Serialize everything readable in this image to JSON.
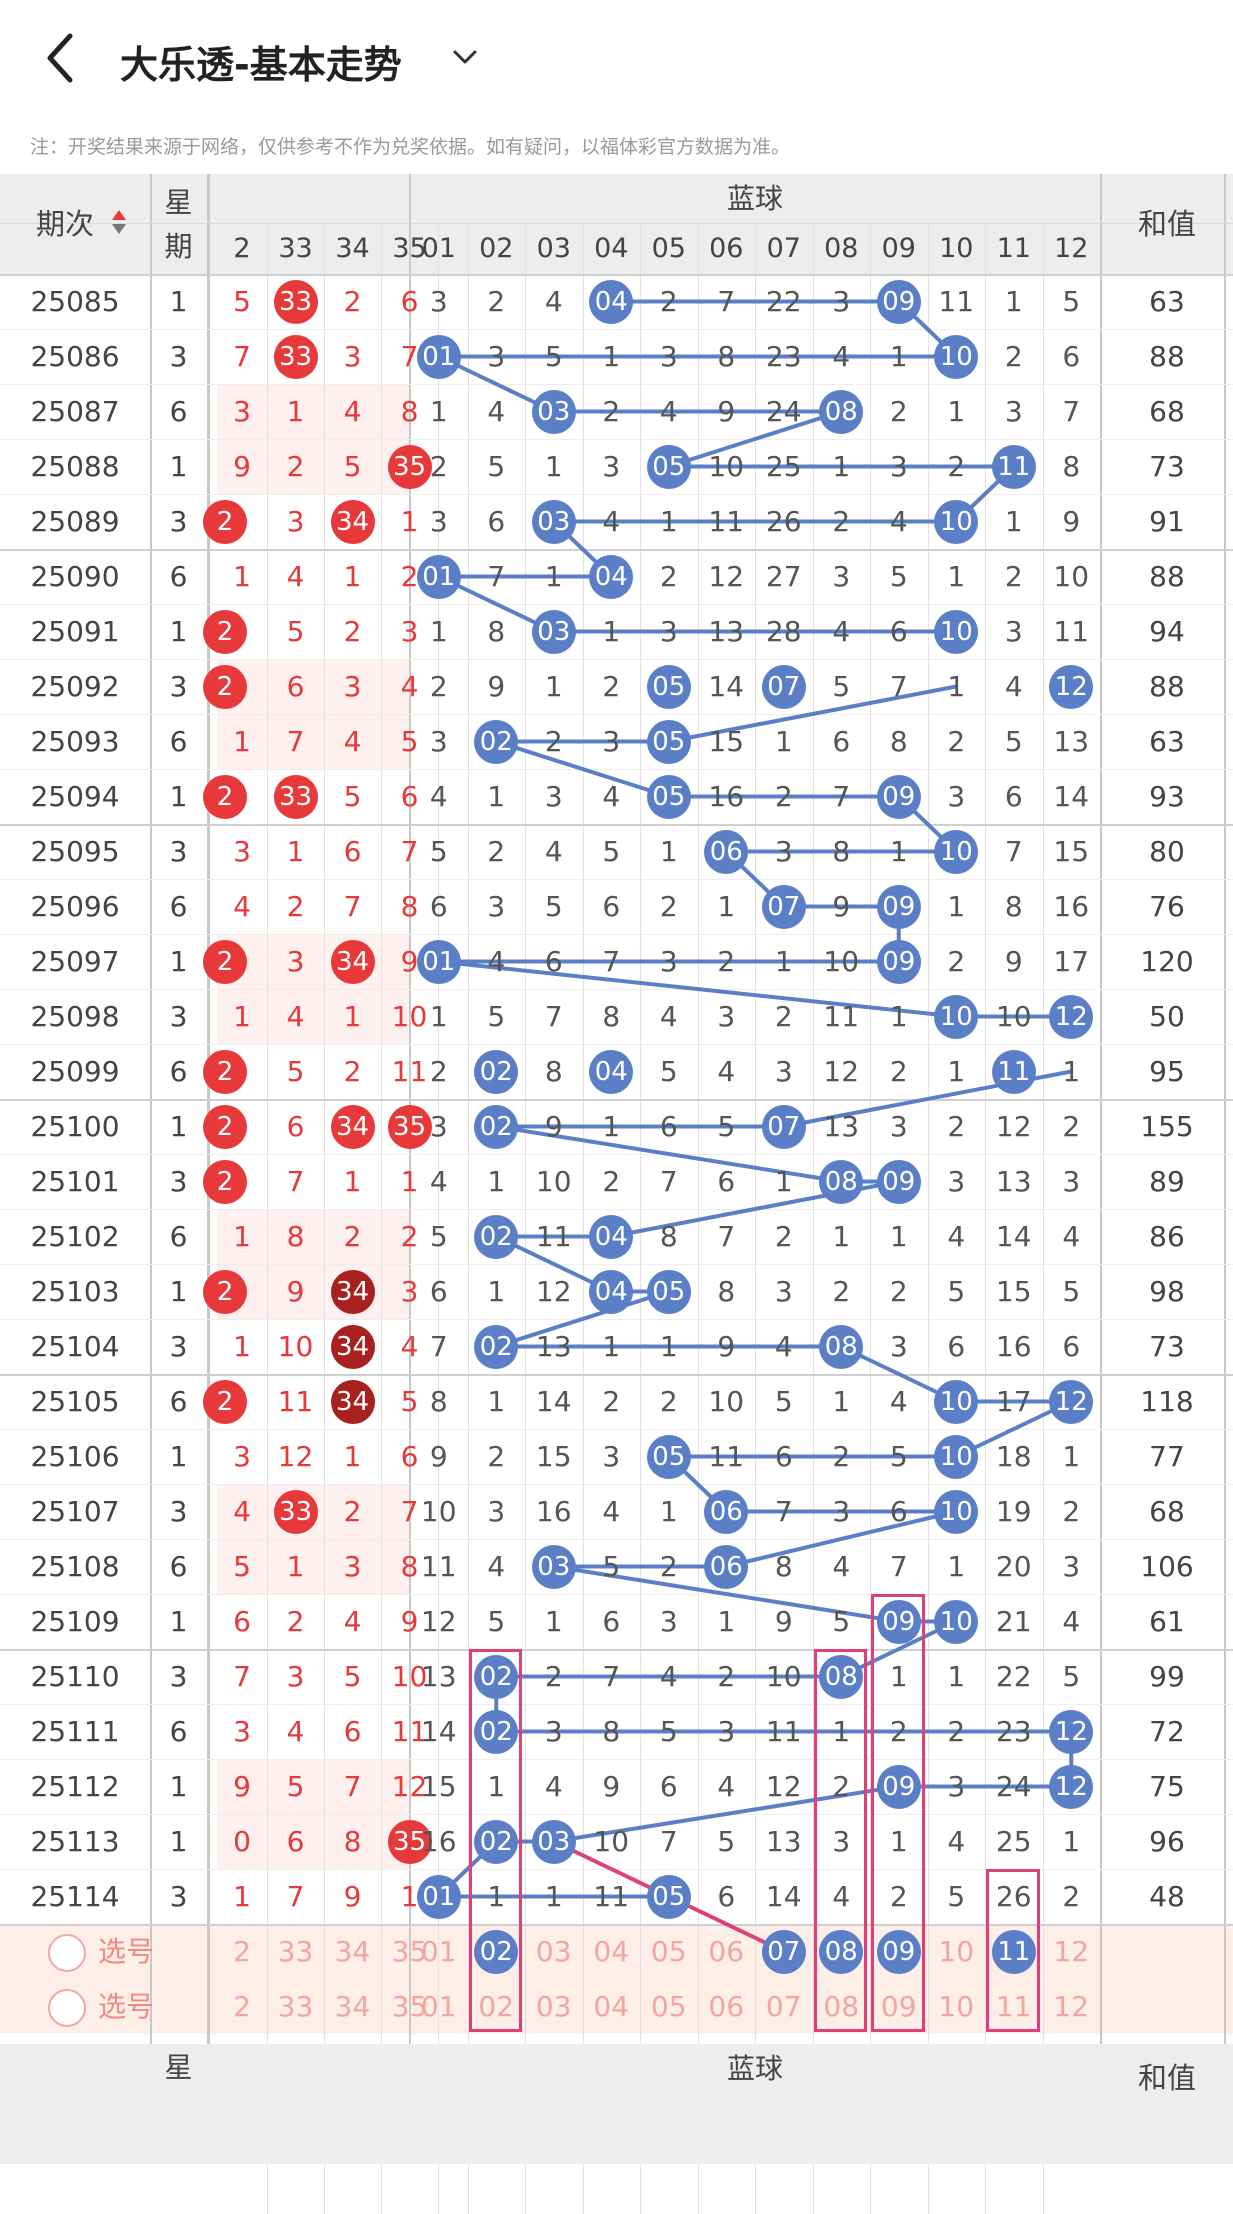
{
  "header": {
    "title": "大乐透-基本走势",
    "back_icon": "chevron-left-icon",
    "dropdown_icon": "chevron-down-icon"
  },
  "note": "注：开奖结果来源于网络，仅供参考不作为兑奖依据。如有疑问，以福体彩官方数据为准。",
  "columns": {
    "period": "期次",
    "weekday": "星期",
    "blue_group": "蓝球",
    "sum": "和值",
    "front_visible": [
      "2",
      "33",
      "34",
      "35"
    ],
    "blue": [
      "01",
      "02",
      "03",
      "04",
      "05",
      "06",
      "07",
      "08",
      "09",
      "10",
      "11",
      "12"
    ]
  },
  "rows": [
    {
      "period": "25085",
      "week": "1",
      "front": [
        "5",
        "33",
        "2",
        "6"
      ],
      "blue": [
        "3",
        "2",
        "4",
        "04",
        "2",
        "7",
        "22",
        "3",
        "09",
        "11",
        "1",
        "5"
      ],
      "sum": "63"
    },
    {
      "period": "25086",
      "week": "3",
      "front": [
        "7",
        "33",
        "3",
        "7"
      ],
      "blue": [
        "01",
        "3",
        "5",
        "1",
        "3",
        "8",
        "23",
        "4",
        "1",
        "10",
        "2",
        "6"
      ],
      "sum": "88"
    },
    {
      "period": "25087",
      "week": "6",
      "front": [
        "3",
        "1",
        "4",
        "8"
      ],
      "blue": [
        "1",
        "4",
        "03",
        "2",
        "4",
        "9",
        "24",
        "08",
        "2",
        "1",
        "3",
        "7"
      ],
      "sum": "68"
    },
    {
      "period": "25088",
      "week": "1",
      "front": [
        "9",
        "2",
        "5",
        "35"
      ],
      "blue": [
        "2",
        "5",
        "1",
        "3",
        "05",
        "10",
        "25",
        "1",
        "3",
        "2",
        "11",
        "8"
      ],
      "sum": "73"
    },
    {
      "period": "25089",
      "week": "3",
      "front": [
        "2",
        "3",
        "34",
        "1"
      ],
      "blue": [
        "3",
        "6",
        "03",
        "4",
        "1",
        "11",
        "26",
        "2",
        "4",
        "10",
        "1",
        "9"
      ],
      "sum": "91"
    },
    {
      "period": "25090",
      "week": "6",
      "front": [
        "1",
        "4",
        "1",
        "2"
      ],
      "blue": [
        "01",
        "7",
        "1",
        "04",
        "2",
        "12",
        "27",
        "3",
        "5",
        "1",
        "2",
        "10"
      ],
      "sum": "88"
    },
    {
      "period": "25091",
      "week": "1",
      "front": [
        "2",
        "5",
        "2",
        "3"
      ],
      "blue": [
        "1",
        "8",
        "03",
        "1",
        "3",
        "13",
        "28",
        "4",
        "6",
        "10",
        "3",
        "11"
      ],
      "sum": "94"
    },
    {
      "period": "25092",
      "week": "3",
      "front": [
        "2",
        "6",
        "3",
        "4"
      ],
      "blue": [
        "2",
        "9",
        "1",
        "2",
        "05",
        "14",
        "07",
        "5",
        "7",
        "1",
        "4",
        "12"
      ],
      "sum": "88"
    },
    {
      "period": "25093",
      "week": "6",
      "front": [
        "1",
        "7",
        "4",
        "5"
      ],
      "blue": [
        "3",
        "02",
        "2",
        "3",
        "05",
        "15",
        "1",
        "6",
        "8",
        "2",
        "5",
        "13"
      ],
      "sum": "63"
    },
    {
      "period": "25094",
      "week": "1",
      "front": [
        "2",
        "33",
        "5",
        "6"
      ],
      "blue": [
        "4",
        "1",
        "3",
        "4",
        "05",
        "16",
        "2",
        "7",
        "09",
        "3",
        "6",
        "14"
      ],
      "sum": "93"
    },
    {
      "period": "25095",
      "week": "3",
      "front": [
        "3",
        "1",
        "6",
        "7"
      ],
      "blue": [
        "5",
        "2",
        "4",
        "5",
        "1",
        "06",
        "3",
        "8",
        "1",
        "10",
        "7",
        "15"
      ],
      "sum": "80"
    },
    {
      "period": "25096",
      "week": "6",
      "front": [
        "4",
        "2",
        "7",
        "8"
      ],
      "blue": [
        "6",
        "3",
        "5",
        "6",
        "2",
        "1",
        "07",
        "9",
        "09",
        "1",
        "8",
        "16"
      ],
      "sum": "76"
    },
    {
      "period": "25097",
      "week": "1",
      "front": [
        "2",
        "3",
        "34",
        "9"
      ],
      "blue": [
        "01",
        "4",
        "6",
        "7",
        "3",
        "2",
        "1",
        "10",
        "09",
        "2",
        "9",
        "17"
      ],
      "sum": "120"
    },
    {
      "period": "25098",
      "week": "3",
      "front": [
        "1",
        "4",
        "1",
        "10"
      ],
      "blue": [
        "1",
        "5",
        "7",
        "8",
        "4",
        "3",
        "2",
        "11",
        "1",
        "10",
        "10",
        "12"
      ],
      "sum": "50"
    },
    {
      "period": "25099",
      "week": "6",
      "front": [
        "2",
        "5",
        "2",
        "11"
      ],
      "blue": [
        "2",
        "02",
        "8",
        "04",
        "5",
        "4",
        "3",
        "12",
        "2",
        "1",
        "11",
        "1"
      ],
      "sum": "95"
    },
    {
      "period": "25100",
      "week": "1",
      "front": [
        "2",
        "6",
        "34",
        "35"
      ],
      "blue": [
        "3",
        "02",
        "9",
        "1",
        "6",
        "5",
        "07",
        "13",
        "3",
        "2",
        "12",
        "2"
      ],
      "sum": "155"
    },
    {
      "period": "25101",
      "week": "3",
      "front": [
        "2",
        "7",
        "1",
        "1"
      ],
      "blue": [
        "4",
        "1",
        "10",
        "2",
        "7",
        "6",
        "1",
        "08",
        "09",
        "3",
        "13",
        "3"
      ],
      "sum": "89"
    },
    {
      "period": "25102",
      "week": "6",
      "front": [
        "1",
        "8",
        "2",
        "2"
      ],
      "blue": [
        "5",
        "02",
        "11",
        "04",
        "8",
        "7",
        "2",
        "1",
        "1",
        "4",
        "14",
        "4"
      ],
      "sum": "86"
    },
    {
      "period": "25103",
      "week": "1",
      "front": [
        "2",
        "9",
        "34",
        "3"
      ],
      "blue": [
        "6",
        "1",
        "12",
        "04",
        "05",
        "8",
        "3",
        "2",
        "2",
        "5",
        "15",
        "5"
      ],
      "sum": "98"
    },
    {
      "period": "25104",
      "week": "3",
      "front": [
        "1",
        "10",
        "34",
        "4"
      ],
      "blue": [
        "7",
        "02",
        "13",
        "1",
        "1",
        "9",
        "4",
        "08",
        "3",
        "6",
        "16",
        "6"
      ],
      "sum": "73"
    },
    {
      "period": "25105",
      "week": "6",
      "front": [
        "2",
        "11",
        "34",
        "5"
      ],
      "blue": [
        "8",
        "1",
        "14",
        "2",
        "2",
        "10",
        "5",
        "1",
        "4",
        "10",
        "17",
        "12"
      ],
      "sum": "118"
    },
    {
      "period": "25106",
      "week": "1",
      "front": [
        "3",
        "12",
        "1",
        "6"
      ],
      "blue": [
        "9",
        "2",
        "15",
        "3",
        "05",
        "11",
        "6",
        "2",
        "5",
        "10",
        "18",
        "1"
      ],
      "sum": "77"
    },
    {
      "period": "25107",
      "week": "3",
      "front": [
        "4",
        "33",
        "2",
        "7"
      ],
      "blue": [
        "10",
        "3",
        "16",
        "4",
        "1",
        "06",
        "7",
        "3",
        "6",
        "10",
        "19",
        "2"
      ],
      "sum": "68"
    },
    {
      "period": "25108",
      "week": "6",
      "front": [
        "5",
        "1",
        "3",
        "8"
      ],
      "blue": [
        "11",
        "4",
        "03",
        "5",
        "2",
        "06",
        "8",
        "4",
        "7",
        "1",
        "20",
        "3"
      ],
      "sum": "106"
    },
    {
      "period": "25109",
      "week": "1",
      "front": [
        "6",
        "2",
        "4",
        "9"
      ],
      "blue": [
        "12",
        "5",
        "1",
        "6",
        "3",
        "1",
        "9",
        "5",
        "09",
        "10",
        "21",
        "4"
      ],
      "sum": "61"
    },
    {
      "period": "25110",
      "week": "3",
      "front": [
        "7",
        "3",
        "5",
        "10"
      ],
      "blue": [
        "13",
        "02",
        "2",
        "7",
        "4",
        "2",
        "10",
        "08",
        "1",
        "1",
        "22",
        "5"
      ],
      "sum": "99"
    },
    {
      "period": "25111",
      "week": "6",
      "front": [
        "3",
        "4",
        "6",
        "11"
      ],
      "blue": [
        "14",
        "02",
        "3",
        "8",
        "5",
        "3",
        "11",
        "1",
        "2",
        "2",
        "23",
        "12"
      ],
      "sum": "72"
    },
    {
      "period": "25112",
      "week": "1",
      "front": [
        "9",
        "5",
        "7",
        "12"
      ],
      "blue": [
        "15",
        "1",
        "4",
        "9",
        "6",
        "4",
        "12",
        "2",
        "09",
        "3",
        "24",
        "12"
      ],
      "sum": "75"
    },
    {
      "period": "25113",
      "week": "1",
      "front": [
        "0",
        "6",
        "8",
        "35"
      ],
      "blue": [
        "16",
        "02",
        "03",
        "10",
        "7",
        "5",
        "13",
        "3",
        "1",
        "4",
        "25",
        "1"
      ],
      "sum": "96"
    },
    {
      "period": "25114",
      "week": "3",
      "front": [
        "1",
        "7",
        "9",
        "1"
      ],
      "blue": [
        "01",
        "1",
        "1",
        "11",
        "05",
        "6",
        "14",
        "4",
        "2",
        "5",
        "26",
        "2"
      ],
      "sum": "48"
    }
  ],
  "front_dark_balls": [
    [
      18,
      2
    ],
    [
      19,
      2
    ],
    [
      20,
      2
    ]
  ],
  "pick_rows": [
    {
      "label": "选号",
      "front": [
        "2",
        "33",
        "34",
        "35"
      ],
      "blue": [
        "01",
        "02",
        "03",
        "04",
        "05",
        "06",
        "07",
        "08",
        "09",
        "10",
        "11",
        "12"
      ],
      "selected": [
        1,
        6,
        7,
        8,
        10
      ]
    },
    {
      "label": "选号",
      "front": [
        "2",
        "33",
        "34",
        "35"
      ],
      "blue": [
        "01",
        "02",
        "03",
        "04",
        "05",
        "06",
        "07",
        "08",
        "09",
        "10",
        "11",
        "12"
      ],
      "selected": []
    }
  ],
  "colors": {
    "red": "#e8393a",
    "dark_red": "#a8211f",
    "blue": "#5b7fc7",
    "pink": "#e0407a",
    "header_bg": "#ededed",
    "pick_bg": "#fdeee8"
  }
}
